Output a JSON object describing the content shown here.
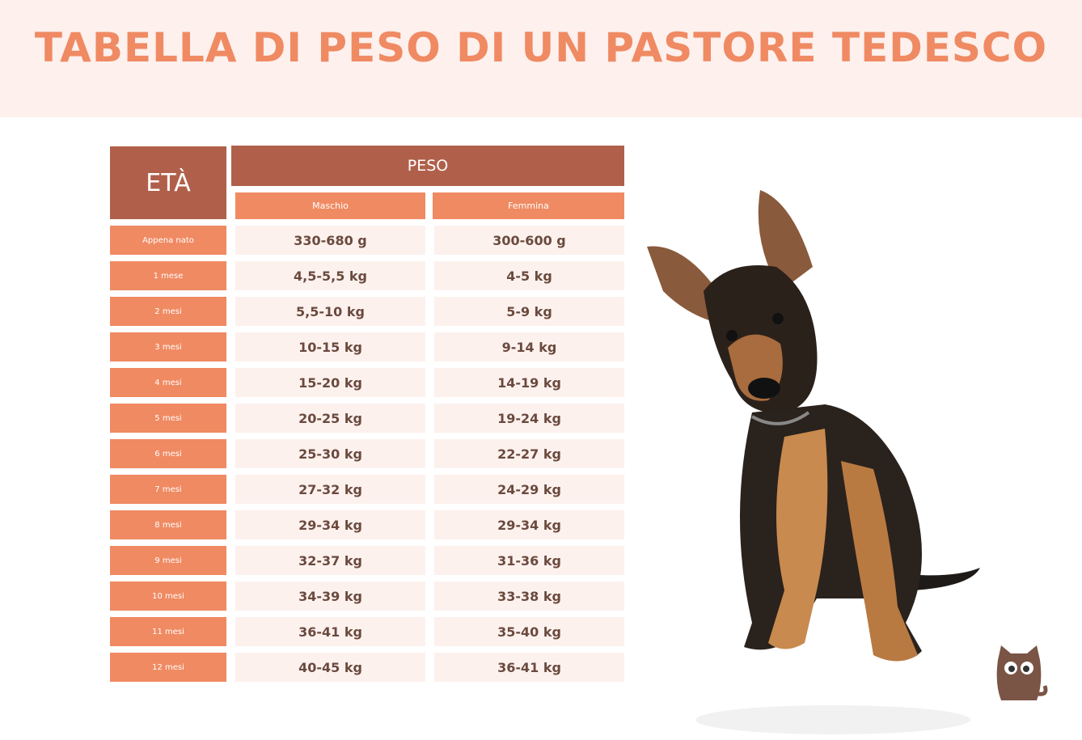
{
  "header": {
    "title": "TABELLA DI PESO DI UN PASTORE TEDESCO"
  },
  "table": {
    "headers": {
      "age": "ETÀ",
      "weight": "PESO",
      "male": "Maschio",
      "female": "Femmina"
    },
    "rows": [
      [
        "Appena nato",
        "330-680 g",
        "300-600 g"
      ],
      [
        "1 mese",
        "4,5-5,5 kg",
        "4-5 kg"
      ],
      [
        "2 mesi",
        "5,5-10 kg",
        "5-9 kg"
      ],
      [
        "3 mesi",
        "10-15 kg",
        "9-14 kg"
      ],
      [
        "4 mesi",
        "15-20 kg",
        "14-19 kg"
      ],
      [
        "5 mesi",
        "20-25 kg",
        "19-24 kg"
      ],
      [
        "6 mesi",
        "25-30 kg",
        "22-27 kg"
      ],
      [
        "7 mesi",
        "27-32 kg",
        "24-29 kg"
      ],
      [
        "8 mesi",
        "29-34 kg",
        "29-34 kg"
      ],
      [
        "9 mesi",
        "32-37 kg",
        "31-36 kg"
      ],
      [
        "10 mesi",
        "34-39 kg",
        "33-38 kg"
      ],
      [
        "11 mesi",
        "36-41 kg",
        "35-40 kg"
      ],
      [
        "12 mesi",
        "40-45 kg",
        "36-41 kg"
      ]
    ]
  }
}
